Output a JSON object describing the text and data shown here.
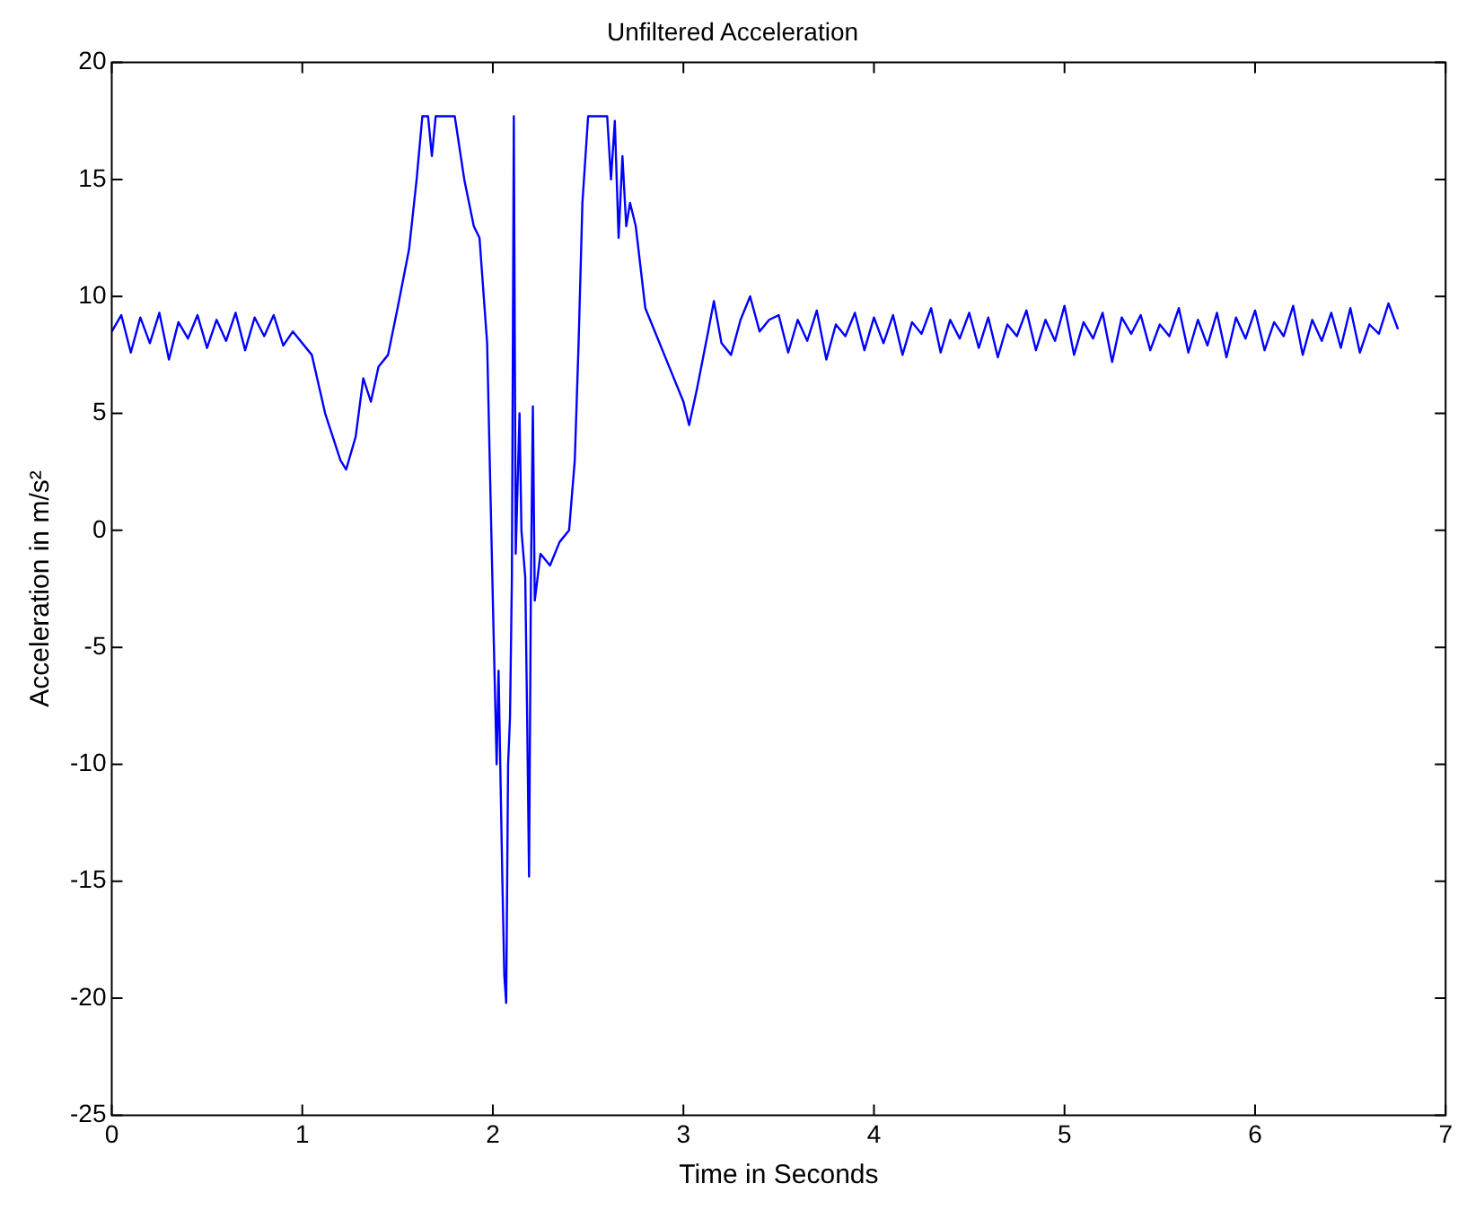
{
  "chart_data": {
    "type": "line",
    "title": "Unfiltered Acceleration",
    "xlabel": "Time in Seconds",
    "ylabel": "Acceleration in m/s²",
    "xlim": [
      0,
      7
    ],
    "ylim": [
      -25,
      20
    ],
    "xticks": [
      0,
      1,
      2,
      3,
      4,
      5,
      6,
      7
    ],
    "yticks": [
      -25,
      -20,
      -15,
      -10,
      -5,
      0,
      5,
      10,
      15,
      20
    ],
    "grid": false,
    "legend": false,
    "marker": "none",
    "line_style": "solid",
    "series": [
      {
        "color": "#0000ff",
        "x": [
          0,
          0.05,
          0.1,
          0.15,
          0.2,
          0.25,
          0.3,
          0.35,
          0.4,
          0.45,
          0.5,
          0.55,
          0.6,
          0.65,
          0.7,
          0.75,
          0.8,
          0.85,
          0.9,
          0.95,
          1.05,
          1.12,
          1.2,
          1.23,
          1.28,
          1.32,
          1.36,
          1.4,
          1.45,
          1.5,
          1.56,
          1.6,
          1.63,
          1.66,
          1.68,
          1.7,
          1.8,
          1.85,
          1.9,
          1.93,
          1.97,
          2.0,
          2.02,
          2.03,
          2.05,
          2.06,
          2.07,
          2.08,
          2.09,
          2.1,
          2.11,
          2.12,
          2.13,
          2.14,
          2.15,
          2.17,
          2.18,
          2.19,
          2.2,
          2.21,
          2.22,
          2.25,
          2.3,
          2.35,
          2.4,
          2.43,
          2.45,
          2.47,
          2.5,
          2.6,
          2.62,
          2.64,
          2.66,
          2.68,
          2.7,
          2.72,
          2.75,
          2.8,
          2.85,
          2.9,
          3.0,
          3.03,
          3.07,
          3.13,
          3.16,
          3.2,
          3.25,
          3.3,
          3.35,
          3.4,
          3.45,
          3.5,
          3.55,
          3.6,
          3.65,
          3.7,
          3.75,
          3.8,
          3.85,
          3.9,
          3.95,
          4.0,
          4.05,
          4.1,
          4.15,
          4.2,
          4.25,
          4.3,
          4.35,
          4.4,
          4.45,
          4.5,
          4.55,
          4.6,
          4.65,
          4.7,
          4.75,
          4.8,
          4.85,
          4.9,
          4.95,
          5.0,
          5.05,
          5.1,
          5.15,
          5.2,
          5.25,
          5.3,
          5.35,
          5.4,
          5.45,
          5.5,
          5.55,
          5.6,
          5.65,
          5.7,
          5.75,
          5.8,
          5.85,
          5.9,
          5.95,
          6.0,
          6.05,
          6.1,
          6.15,
          6.2,
          6.25,
          6.3,
          6.35,
          6.4,
          6.45,
          6.5,
          6.55,
          6.6,
          6.65,
          6.7,
          6.75
        ],
        "values": [
          8.5,
          9.2,
          7.6,
          9.1,
          8.0,
          9.3,
          7.3,
          8.9,
          8.2,
          9.2,
          7.8,
          9.0,
          8.1,
          9.3,
          7.7,
          9.1,
          8.3,
          9.2,
          7.9,
          8.5,
          7.5,
          5,
          3,
          2.6,
          4,
          6.5,
          5.5,
          7,
          7.5,
          9.5,
          12,
          15,
          17.7,
          17.7,
          16,
          17.7,
          17.7,
          15,
          13,
          12.5,
          8,
          -3,
          -10,
          -6,
          -15,
          -19,
          -20.2,
          -10,
          -8,
          -2,
          17.7,
          -1,
          2,
          5,
          0,
          -2,
          -8,
          -14.8,
          -2,
          5.3,
          -3,
          -1,
          -1.5,
          -0.5,
          0,
          3,
          8,
          14,
          17.7,
          17.7,
          15,
          17.5,
          12.5,
          16,
          13,
          14,
          13,
          9.5,
          8.5,
          7.5,
          5.5,
          4.5,
          6,
          8.5,
          9.8,
          8,
          7.5,
          9,
          10,
          8.5,
          9,
          9.2,
          7.6,
          9.0,
          8.1,
          9.4,
          7.3,
          8.8,
          8.3,
          9.3,
          7.7,
          9.1,
          8.0,
          9.2,
          7.5,
          8.9,
          8.4,
          9.5,
          7.6,
          9.0,
          8.2,
          9.3,
          7.8,
          9.1,
          7.4,
          8.8,
          8.3,
          9.4,
          7.7,
          9.0,
          8.1,
          9.6,
          7.5,
          8.9,
          8.2,
          9.3,
          7.2,
          9.1,
          8.4,
          9.2,
          7.7,
          8.8,
          8.3,
          9.5,
          7.6,
          9.0,
          7.9,
          9.3,
          7.4,
          9.1,
          8.2,
          9.4,
          7.7,
          8.9,
          8.3,
          9.6,
          7.5,
          9.0,
          8.1,
          9.3,
          7.8,
          9.5,
          7.6,
          8.8,
          8.4,
          9.7,
          8.6
        ]
      }
    ]
  }
}
